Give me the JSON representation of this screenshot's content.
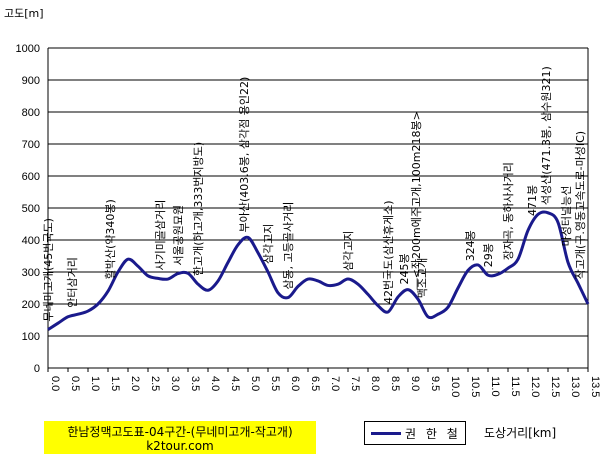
{
  "chart_data": {
    "type": "line",
    "title": "한남정맥고도표-04구간-(무네미고개-작고개)",
    "subtitle": "k2tour.com",
    "ylabel": "고도[m]",
    "xlabel": "도상거리[km]",
    "ylim": [
      0,
      1000
    ],
    "yticks": [
      0,
      100,
      200,
      300,
      400,
      500,
      600,
      700,
      800,
      900,
      1000
    ],
    "xlim": [
      0,
      13.5
    ],
    "xticks": [
      0.0,
      0.5,
      1.0,
      1.5,
      2.0,
      2.5,
      3.0,
      3.5,
      4.0,
      4.5,
      5.0,
      5.5,
      6.0,
      6.5,
      7.0,
      7.5,
      8.0,
      8.5,
      9.0,
      9.5,
      10.0,
      10.5,
      11.0,
      11.5,
      12.0,
      12.5,
      13.0,
      13.5
    ],
    "xtick_labels": [
      "0.0",
      "0.5",
      "1.0",
      "1.5",
      "2.0",
      "2.5",
      "3.0",
      "3.5",
      "4.0",
      "4.5",
      "5.0",
      "5.5",
      "6.0",
      "6.5",
      "7.0",
      "7.5",
      "8.0",
      "8.5",
      "9.0",
      "9.5",
      "10.0",
      "10.5",
      "11.0",
      "11.5",
      "12.0",
      "12.5",
      "13.0",
      "13.5"
    ],
    "grid": "horizontal",
    "series": [
      {
        "name": "권 한 철",
        "color": "#1a1a8c",
        "x": [
          0.0,
          0.25,
          0.5,
          0.75,
          1.0,
          1.25,
          1.5,
          1.75,
          2.0,
          2.25,
          2.5,
          2.75,
          3.0,
          3.25,
          3.5,
          3.75,
          4.0,
          4.25,
          4.5,
          4.75,
          5.0,
          5.25,
          5.5,
          5.75,
          6.0,
          6.25,
          6.5,
          6.75,
          7.0,
          7.25,
          7.5,
          7.75,
          8.0,
          8.25,
          8.5,
          8.75,
          9.0,
          9.25,
          9.5,
          9.75,
          10.0,
          10.25,
          10.5,
          10.75,
          11.0,
          11.25,
          11.5,
          11.75,
          12.0,
          12.25,
          12.5,
          12.75,
          13.0,
          13.25,
          13.5
        ],
        "y": [
          120,
          140,
          160,
          168,
          178,
          200,
          240,
          300,
          340,
          318,
          288,
          280,
          278,
          295,
          296,
          262,
          243,
          272,
          330,
          385,
          408,
          360,
          300,
          235,
          220,
          255,
          278,
          272,
          258,
          262,
          278,
          262,
          230,
          195,
          175,
          222,
          245,
          215,
          160,
          168,
          190,
          250,
          305,
          322,
          290,
          293,
          312,
          340,
          430,
          480,
          485,
          455,
          330,
          265,
          200
        ]
      }
    ],
    "annotations": [
      {
        "x": 0.0,
        "text": "무네미고개(45번국도)"
      },
      {
        "x": 0.6,
        "text": "안터삼거리"
      },
      {
        "x": 1.55,
        "text": "할박산(약340봉)"
      },
      {
        "x": 2.8,
        "text": "사기미골삼거리"
      },
      {
        "x": 3.25,
        "text": "서울공원묘원"
      },
      {
        "x": 3.75,
        "text": "한고개(하고개,333번지방도)"
      },
      {
        "x": 4.9,
        "text": "부아산(403.6봉, 삼각점 용인22)"
      },
      {
        "x": 5.5,
        "text": "삼각고지"
      },
      {
        "x": 6.0,
        "text": "삼동, 고등골사거리"
      },
      {
        "x": 7.5,
        "text": "삼각고지"
      },
      {
        "x": 8.5,
        "text": "42번국도(삼산휴게소)"
      },
      {
        "x": 8.9,
        "text": "245봉"
      },
      {
        "x": 9.2,
        "text": "―<좌200m에주고개,100m218봉>"
      },
      {
        "x": 9.35,
        "text": "맥조고개"
      },
      {
        "x": 10.55,
        "text": "324봉"
      },
      {
        "x": 11.0,
        "text": "29봉"
      },
      {
        "x": 11.5,
        "text": "장자곡, 동하사사거리"
      },
      {
        "x": 12.1,
        "text": "471봉"
      },
      {
        "x": 12.45,
        "text": "석성산(471.3봉, 삼수원321)"
      },
      {
        "x": 12.95,
        "text": "마성터널능선"
      },
      {
        "x": 13.3,
        "text": "작고개(구.영동고속도로-마성IC)"
      }
    ]
  },
  "legend": {
    "label": "권 한 철"
  },
  "caption": {
    "line1": "한남정맥고도표-04구간-(무네미고개-작고개)",
    "line2": "k2tour.com"
  }
}
